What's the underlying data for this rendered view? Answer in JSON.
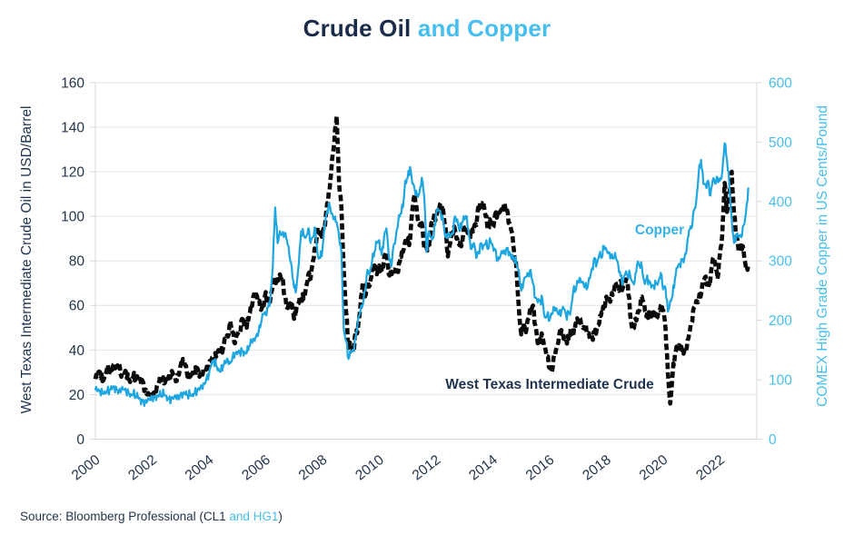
{
  "title": {
    "part1": "Crude Oil",
    "part2": " and Copper"
  },
  "left_axis": {
    "label": "West Texas Intermediate Crude Oil in USD/Barrel",
    "range": [
      0,
      160
    ],
    "ticks": [
      0,
      20,
      40,
      60,
      80,
      100,
      120,
      140,
      160
    ]
  },
  "right_axis": {
    "label": "COMEX High Grade Copper in US Cents/Pound",
    "range": [
      0,
      600
    ],
    "ticks": [
      0,
      100,
      200,
      300,
      400,
      500,
      600
    ]
  },
  "x_axis": {
    "range": [
      2000,
      2023.3
    ],
    "ticks": [
      2000,
      2002,
      2004,
      2006,
      2008,
      2010,
      2012,
      2014,
      2016,
      2018,
      2020,
      2022
    ]
  },
  "annotations": {
    "copper": "Copper",
    "wti": "West Texas Intermediate Crude"
  },
  "source": {
    "prefix": "Source: Bloomberg Professional (CL1 ",
    "highlight": "and HG1",
    "suffix": ")"
  },
  "colors": {
    "navy_text": "#1b2b4a",
    "blue_text": "#47bfee",
    "copper_line": "#1ea6e0",
    "wti_line": "#0a0a0a",
    "grid": "#e4e4e4",
    "axis_border": "#d9d9d9"
  },
  "chart_data": {
    "type": "line",
    "title": "Crude Oil and Copper",
    "x_start_year": 2000,
    "interval_months": 1,
    "grid": "horizontal",
    "legend_position": "in-plot-annotations",
    "series": [
      {
        "name": "West Texas Intermediate Crude",
        "axis": "left",
        "units": "USD/Barrel",
        "style": "thick-dashed-black",
        "values": [
          27,
          29,
          30,
          26,
          29,
          32,
          30,
          31,
          34,
          33,
          34,
          28,
          29,
          30,
          27,
          27,
          28,
          27,
          26,
          27,
          26,
          22,
          20,
          19,
          19,
          21,
          24,
          26,
          27,
          25,
          27,
          28,
          30,
          29,
          26,
          29,
          33,
          36,
          33,
          28,
          28,
          31,
          30,
          32,
          28,
          30,
          31,
          32,
          34,
          35,
          37,
          37,
          40,
          38,
          41,
          45,
          46,
          53,
          48,
          43,
          47,
          48,
          54,
          53,
          50,
          56,
          59,
          65,
          65,
          62,
          58,
          59,
          66,
          62,
          63,
          69,
          71,
          71,
          74,
          73,
          64,
          59,
          59,
          62,
          54,
          59,
          61,
          64,
          63,
          68,
          74,
          72,
          80,
          86,
          95,
          92,
          93,
          95,
          106,
          112,
          125,
          134,
          145,
          115,
          104,
          76,
          57,
          41,
          42,
          39,
          48,
          50,
          59,
          70,
          64,
          71,
          69,
          76,
          78,
          74,
          78,
          76,
          81,
          84,
          74,
          75,
          76,
          77,
          75,
          82,
          84,
          89,
          89,
          89,
          103,
          110,
          101,
          96,
          97,
          86,
          86,
          86,
          97,
          99,
          100,
          102,
          106,
          103,
          95,
          82,
          88,
          94,
          94,
          90,
          87,
          88,
          95,
          95,
          93,
          92,
          95,
          96,
          105,
          106,
          106,
          100,
          94,
          98,
          95,
          101,
          101,
          102,
          102,
          106,
          103,
          97,
          93,
          84,
          76,
          59,
          47,
          51,
          48,
          54,
          59,
          60,
          51,
          43,
          45,
          46,
          42,
          37,
          32,
          30,
          38,
          41,
          46,
          49,
          45,
          45,
          45,
          50,
          46,
          52,
          53,
          54,
          50,
          51,
          48,
          45,
          46,
          48,
          50,
          52,
          57,
          58,
          64,
          62,
          63,
          66,
          70,
          67,
          71,
          68,
          70,
          71,
          57,
          49,
          52,
          55,
          58,
          64,
          61,
          55,
          57,
          55,
          57,
          54,
          57,
          60,
          58,
          50,
          30,
          16,
          29,
          38,
          41,
          42,
          40,
          40,
          41,
          47,
          52,
          59,
          62,
          62,
          65,
          71,
          73,
          68,
          72,
          81,
          79,
          72,
          83,
          92,
          115,
          102,
          110,
          120,
          101,
          92,
          84,
          87,
          85,
          77,
          78
        ]
      },
      {
        "name": "Copper",
        "axis": "right",
        "units": "US Cents/Pound",
        "style": "thin-solid-blue",
        "values": [
          84,
          81,
          79,
          78,
          81,
          80,
          82,
          84,
          88,
          84,
          82,
          83,
          83,
          80,
          79,
          76,
          76,
          72,
          70,
          67,
          65,
          62,
          64,
          66,
          70,
          71,
          73,
          73,
          74,
          76,
          73,
          68,
          67,
          68,
          71,
          71,
          76,
          77,
          75,
          73,
          75,
          76,
          79,
          81,
          83,
          88,
          94,
          103,
          109,
          124,
          133,
          125,
          119,
          114,
          123,
          128,
          134,
          128,
          139,
          143,
          143,
          148,
          149,
          147,
          145,
          156,
          163,
          169,
          174,
          181,
          195,
          210,
          213,
          222,
          238,
          290,
          390,
          330,
          350,
          345,
          345,
          335,
          310,
          290,
          255,
          255,
          295,
          350,
          345,
          340,
          355,
          330,
          340,
          355,
          310,
          305,
          320,
          360,
          385,
          395,
          380,
          370,
          365,
          340,
          315,
          185,
          165,
          135,
          145,
          150,
          170,
          200,
          215,
          225,
          250,
          285,
          280,
          300,
          315,
          330,
          335,
          310,
          340,
          355,
          310,
          290,
          325,
          340,
          365,
          380,
          390,
          435,
          440,
          458,
          430,
          420,
          410,
          415,
          440,
          410,
          315,
          350,
          340,
          340,
          380,
          385,
          380,
          370,
          340,
          345,
          340,
          345,
          375,
          370,
          350,
          365,
          370,
          375,
          340,
          320,
          330,
          305,
          315,
          330,
          325,
          330,
          320,
          335,
          325,
          320,
          300,
          305,
          315,
          315,
          322,
          315,
          303,
          305,
          295,
          285,
          250,
          265,
          273,
          275,
          285,
          262,
          238,
          230,
          233,
          235,
          205,
          210,
          200,
          210,
          222,
          220,
          210,
          215,
          220,
          208,
          212,
          218,
          250,
          250,
          265,
          270,
          265,
          257,
          255,
          270,
          288,
          305,
          295,
          310,
          305,
          325,
          320,
          315,
          305,
          305,
          307,
          295,
          275,
          265,
          278,
          275,
          278,
          265,
          265,
          295,
          292,
          290,
          265,
          270,
          267,
          255,
          258,
          263,
          265,
          280,
          252,
          255,
          215,
          233,
          242,
          270,
          288,
          295,
          302,
          305,
          320,
          352,
          355,
          385,
          400,
          445,
          470,
          430,
          428,
          435,
          410,
          437,
          430,
          440,
          435,
          450,
          498,
          470,
          427,
          370,
          330,
          345,
          340,
          340,
          360,
          380,
          422
        ]
      }
    ]
  }
}
